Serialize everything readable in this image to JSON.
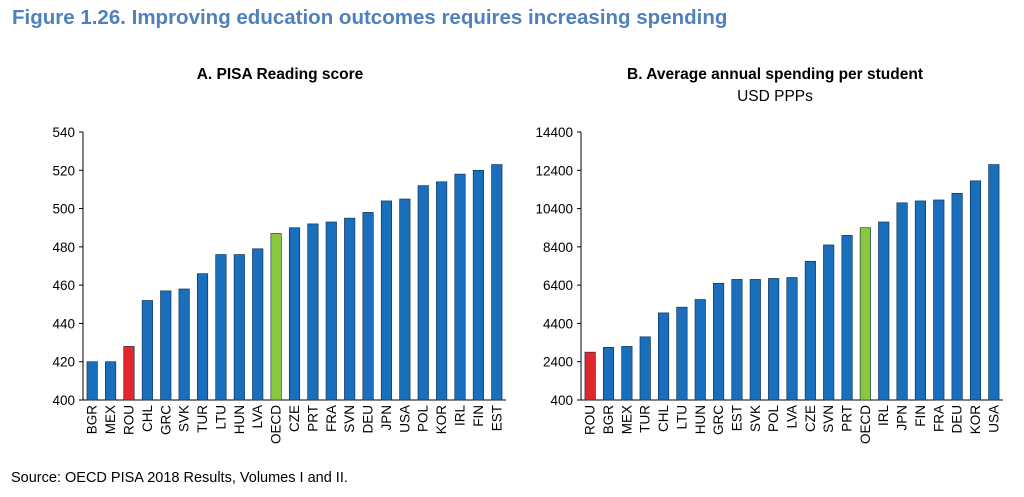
{
  "figure_title": "Figure 1.26. Improving education outcomes requires increasing spending",
  "source": "Source: OECD PISA 2018 Results, Volumes I and II.",
  "colors": {
    "bar": "#1a6fbd",
    "highlight_rou": "#e3262c",
    "highlight_oecd": "#8bc63f",
    "axis": "#000000",
    "title": "#4f81bd"
  },
  "chart_data": [
    {
      "type": "bar",
      "title": "A. PISA Reading score",
      "subtitle": "",
      "xlabel": "",
      "ylabel": "",
      "ylim": [
        400,
        540
      ],
      "yticks": [
        400,
        420,
        440,
        460,
        480,
        500,
        520,
        540
      ],
      "grid": false,
      "categories": [
        "BGR",
        "MEX",
        "ROU",
        "CHL",
        "GRC",
        "SVK",
        "TUR",
        "LTU",
        "HUN",
        "LVA",
        "OECD",
        "CZE",
        "PRT",
        "FRA",
        "SVN",
        "DEU",
        "JPN",
        "USA",
        "POL",
        "KOR",
        "IRL",
        "FIN",
        "EST"
      ],
      "values": [
        420,
        420,
        428,
        452,
        457,
        458,
        466,
        476,
        476,
        479,
        487,
        490,
        492,
        493,
        495,
        498,
        504,
        505,
        512,
        514,
        518,
        520,
        523
      ],
      "highlights": {
        "ROU": "red",
        "OECD": "green"
      }
    },
    {
      "type": "bar",
      "title": "B. Average annual spending per student",
      "subtitle": "USD PPPs",
      "xlabel": "",
      "ylabel": "",
      "ylim": [
        400,
        14400
      ],
      "yticks": [
        400,
        2400,
        4400,
        6400,
        8400,
        10400,
        12400,
        14400
      ],
      "grid": false,
      "categories": [
        "ROU",
        "BGR",
        "MEX",
        "TUR",
        "CHL",
        "LTU",
        "HUN",
        "GRC",
        "EST",
        "SVK",
        "POL",
        "LVA",
        "CZE",
        "SVN",
        "PRT",
        "OECD",
        "IRL",
        "JPN",
        "FIN",
        "FRA",
        "DEU",
        "KOR",
        "USA"
      ],
      "values": [
        2900,
        3150,
        3200,
        3700,
        4950,
        5250,
        5650,
        6500,
        6700,
        6700,
        6750,
        6800,
        7650,
        8500,
        9000,
        9400,
        9700,
        10700,
        10800,
        10850,
        11200,
        11850,
        12700
      ],
      "highlights": {
        "ROU": "red",
        "OECD": "green"
      }
    }
  ]
}
